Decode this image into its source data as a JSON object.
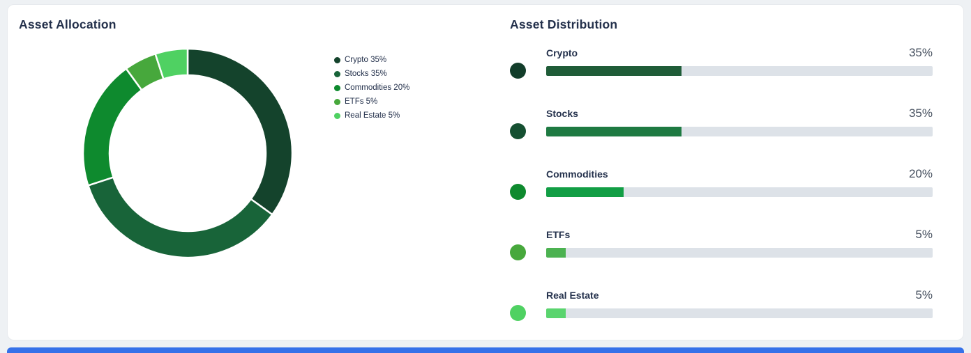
{
  "allocation": {
    "title": "Asset Allocation"
  },
  "distribution": {
    "title": "Asset Distribution",
    "rows": [
      {
        "label": "Crypto",
        "value_text": "35%",
        "percent": 35,
        "dot_color": "#123d2a",
        "bar_color": "#1f5c38"
      },
      {
        "label": "Stocks",
        "value_text": "35%",
        "percent": 35,
        "dot_color": "#155031",
        "bar_color": "#1e7a42"
      },
      {
        "label": "Commodities",
        "value_text": "20%",
        "percent": 20,
        "dot_color": "#0e8a2e",
        "bar_color": "#129e45"
      },
      {
        "label": "ETFs",
        "value_text": "5%",
        "percent": 5,
        "dot_color": "#47a83c",
        "bar_color": "#4cb251"
      },
      {
        "label": "Real Estate",
        "value_text": "5%",
        "percent": 5,
        "dot_color": "#4fd162",
        "bar_color": "#5ad46e"
      }
    ]
  },
  "chart_data": {
    "type": "pie",
    "donut": true,
    "title": "Asset Allocation",
    "categories": [
      "Crypto",
      "Stocks",
      "Commodities",
      "ETFs",
      "Real Estate"
    ],
    "values": [
      35,
      35,
      20,
      5,
      5
    ],
    "colors": [
      "#14432c",
      "#186439",
      "#0e8a2e",
      "#47a83c",
      "#4fd162"
    ],
    "legend": [
      "Crypto 35%",
      "Stocks 35%",
      "Commodities 20%",
      "ETFs 5%",
      "Real Estate 5%"
    ],
    "legend_position": "right",
    "start_angle_deg": 0,
    "direction": "clockwise"
  },
  "colors": {
    "bar_track": "#dde2e8",
    "accent_blue": "#3671e9"
  }
}
